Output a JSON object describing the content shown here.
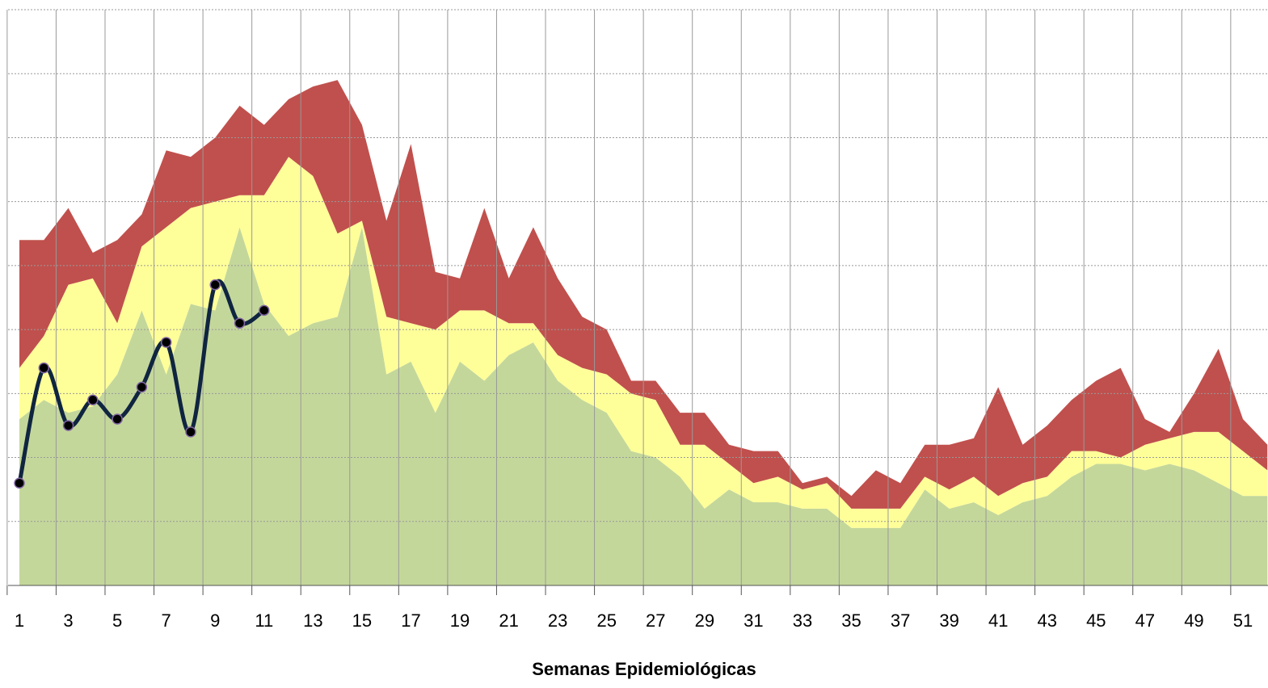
{
  "chart_data": {
    "type": "stacked-area-line",
    "x_label": "Semanas Epidemiológicas",
    "categories": [
      1,
      null,
      3,
      null,
      5,
      null,
      7,
      null,
      9,
      null,
      11,
      null,
      13,
      null,
      15,
      null,
      17,
      null,
      19,
      null,
      21,
      null,
      23,
      null,
      25,
      null,
      27,
      null,
      29,
      null,
      31,
      null,
      33,
      null,
      35,
      null,
      37,
      null,
      39,
      null,
      41,
      null,
      43,
      null,
      45,
      null,
      47,
      null,
      49,
      null,
      51,
      null
    ],
    "ylim": [
      0,
      9
    ],
    "yticks": [
      0,
      1,
      2,
      3,
      4,
      5,
      6,
      7,
      8,
      9
    ],
    "grid": true,
    "areas": [
      {
        "color": "#c4d79b",
        "values": [
          2.6,
          2.9,
          2.7,
          2.8,
          3.3,
          4.3,
          3.3,
          4.4,
          4.3,
          5.6,
          4.4,
          3.9,
          4.1,
          4.2,
          5.6,
          3.3,
          3.5,
          2.7,
          3.5,
          3.2,
          3.6,
          3.8,
          3.2,
          2.9,
          2.7,
          2.1,
          2.0,
          1.7,
          1.2,
          1.5,
          1.3,
          1.3,
          1.2,
          1.2,
          0.9,
          0.9,
          0.9,
          1.5,
          1.2,
          1.3,
          1.1,
          1.3,
          1.4,
          1.7,
          1.9,
          1.9,
          1.8,
          1.9,
          1.8,
          1.6,
          1.4,
          1.4
        ]
      },
      {
        "color": "#ffff99",
        "values": [
          0.8,
          1.0,
          2.0,
          2.0,
          0.8,
          1.0,
          2.3,
          1.5,
          1.7,
          0.5,
          1.7,
          2.8,
          2.3,
          1.3,
          0.1,
          0.9,
          0.6,
          1.3,
          0.8,
          1.1,
          0.5,
          0.3,
          0.4,
          0.5,
          0.6,
          0.9,
          0.9,
          0.5,
          1.0,
          0.4,
          0.3,
          0.4,
          0.3,
          0.4,
          0.3,
          0.3,
          0.3,
          0.2,
          0.3,
          0.4,
          0.3,
          0.3,
          0.3,
          0.4,
          0.2,
          0.1,
          0.4,
          0.4,
          0.6,
          0.8,
          0.7,
          0.4
        ]
      },
      {
        "color": "#c0504d",
        "values": [
          2.0,
          1.5,
          1.2,
          0.4,
          1.3,
          0.5,
          1.2,
          0.8,
          1.0,
          1.4,
          1.1,
          0.9,
          1.4,
          2.4,
          1.5,
          1.5,
          2.8,
          0.9,
          0.5,
          1.6,
          0.7,
          1.5,
          1.2,
          0.8,
          0.7,
          0.2,
          0.3,
          0.5,
          0.5,
          0.3,
          0.5,
          0.4,
          0.1,
          0.1,
          0.2,
          0.6,
          0.4,
          0.5,
          0.7,
          0.6,
          1.7,
          0.6,
          0.8,
          0.8,
          1.1,
          1.4,
          0.4,
          0.1,
          0.6,
          1.3,
          0.5,
          0.4
        ]
      }
    ],
    "line": {
      "color": "#0f2540",
      "values": [
        1.6,
        3.4,
        2.5,
        2.9,
        2.6,
        3.1,
        3.8,
        2.4,
        4.7,
        4.1,
        4.3,
        null,
        null,
        null,
        null,
        null,
        null,
        null,
        null,
        null,
        null,
        null,
        null,
        null,
        null,
        null,
        null,
        null,
        null,
        null,
        null,
        null,
        null,
        null,
        null,
        null,
        null,
        null,
        null,
        null,
        null,
        null,
        null,
        null,
        null,
        null,
        null,
        null,
        null,
        null,
        null,
        null
      ]
    }
  }
}
